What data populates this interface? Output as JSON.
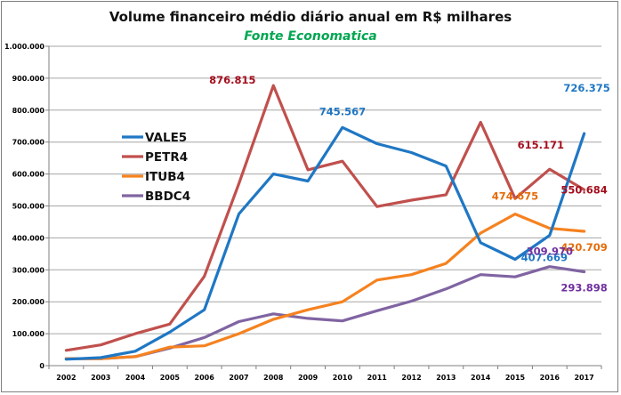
{
  "chart_data": {
    "type": "line",
    "title": "Volume financeiro médio diário anual em R$ milhares",
    "subtitle": "Fonte Economatica",
    "subtitle_color": "#00a651",
    "xlabel": "",
    "ylabel": "",
    "ylim": [
      0,
      1000000
    ],
    "y_ticks": [
      0,
      100000,
      200000,
      300000,
      400000,
      500000,
      600000,
      700000,
      800000,
      900000,
      1000000
    ],
    "y_tick_labels": [
      "0",
      "100.000",
      "200.000",
      "300.000",
      "400.000",
      "500.000",
      "600.000",
      "700.000",
      "800.000",
      "900.000",
      "1.000.000"
    ],
    "grid": true,
    "legend_position": "left",
    "categories": [
      "2002",
      "2003",
      "2004",
      "2005",
      "2006",
      "2007",
      "2008",
      "2009",
      "2010",
      "2011",
      "2012",
      "2013",
      "2014",
      "2015",
      "2016",
      "2017"
    ],
    "series": [
      {
        "name": "VALE5",
        "color": "#1f77c4",
        "values": [
          20000,
          25000,
          45000,
          105000,
          175000,
          475000,
          600000,
          578000,
          745567,
          695000,
          667000,
          625000,
          385000,
          333000,
          407669,
          726375
        ],
        "labels": [
          {
            "index": 8,
            "text": "745.567"
          },
          {
            "index": 14,
            "text": "407.669"
          },
          {
            "index": 15,
            "text": "726.375"
          }
        ]
      },
      {
        "name": "PETR4",
        "color": "#c0504d",
        "label_color": "#a50f1e",
        "values": [
          48000,
          65000,
          100000,
          130000,
          280000,
          570000,
          876815,
          613000,
          640000,
          498000,
          518000,
          535000,
          762000,
          523000,
          615171,
          550684
        ],
        "labels": [
          {
            "index": 6,
            "text": "876.815"
          },
          {
            "index": 14,
            "text": "615.171"
          },
          {
            "index": 15,
            "text": "550.684"
          }
        ]
      },
      {
        "name": "ITUB4",
        "color": "#f58220",
        "label_color": "#e46c0a",
        "values": [
          22000,
          22000,
          28000,
          58000,
          62000,
          100000,
          145000,
          175000,
          200000,
          268000,
          285000,
          320000,
          415000,
          474675,
          430000,
          420709
        ],
        "labels": [
          {
            "index": 13,
            "text": "474.675"
          },
          {
            "index": 15,
            "text": "420.709"
          }
        ]
      },
      {
        "name": "BBDC4",
        "color": "#8064a2",
        "label_color": "#7030a0",
        "values": [
          22000,
          22000,
          28000,
          55000,
          88000,
          138000,
          162000,
          148000,
          140000,
          172000,
          202000,
          240000,
          285000,
          278000,
          309970,
          293898
        ],
        "labels": [
          {
            "index": 14,
            "text": "309.970"
          },
          {
            "index": 15,
            "text": "293.898"
          }
        ]
      }
    ]
  }
}
